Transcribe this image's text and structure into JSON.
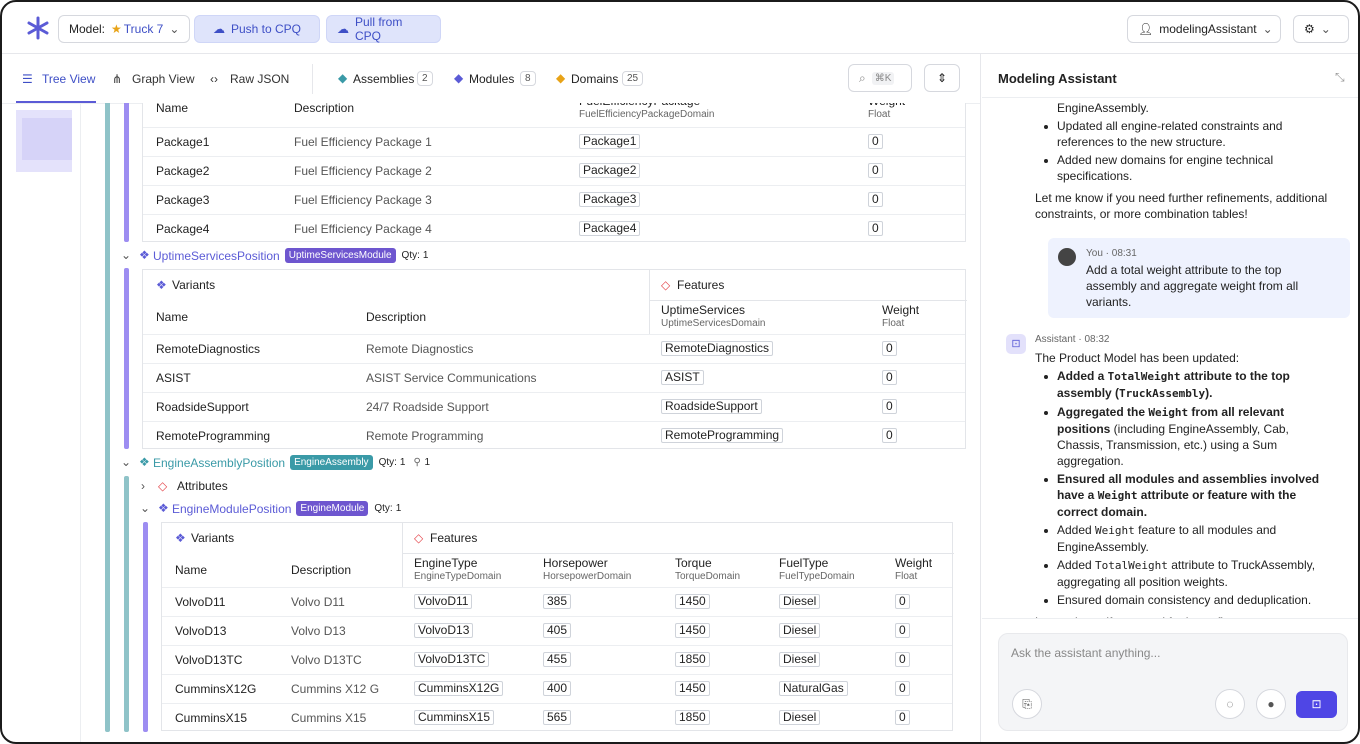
{
  "header": {
    "model_label": "Model:",
    "model_name": "Truck 7",
    "push": "Push to CPQ",
    "pull": "Pull from CPQ",
    "user": "modelingAssistant"
  },
  "view_tabs": [
    "Tree View",
    "Graph View",
    "Raw JSON"
  ],
  "entity_tabs": [
    {
      "label": "Assemblies",
      "count": 2
    },
    {
      "label": "Modules",
      "count": 8
    },
    {
      "label": "Domains",
      "count": 25
    }
  ],
  "search_shortcut": "⌘K",
  "tree": {
    "package_table": {
      "columns": [
        {
          "name": "Name"
        },
        {
          "name": "Description"
        },
        {
          "name": "FuelEfficiencyPackage",
          "domain": "FuelEfficiencyPackageDomain"
        },
        {
          "name": "Weight",
          "domain": "Float"
        }
      ],
      "rows": [
        [
          "Package1",
          "Fuel Efficiency Package 1",
          "Package1",
          0
        ],
        [
          "Package2",
          "Fuel Efficiency Package 2",
          "Package2",
          0
        ],
        [
          "Package3",
          "Fuel Efficiency Package 3",
          "Package3",
          0
        ],
        [
          "Package4",
          "Fuel Efficiency Package 4",
          "Package4",
          0
        ]
      ]
    },
    "uptime": {
      "name": "UptimeServicesPosition",
      "badge": "UptimeServicesModule",
      "qty_label": "Qty:",
      "qty": 1,
      "table": {
        "variants_label": "Variants",
        "features_label": "Features",
        "columns": [
          {
            "name": "Name"
          },
          {
            "name": "Description"
          },
          {
            "name": "UptimeServices",
            "domain": "UptimeServicesDomain"
          },
          {
            "name": "Weight",
            "domain": "Float"
          }
        ],
        "rows": [
          [
            "RemoteDiagnostics",
            "Remote Diagnostics",
            "RemoteDiagnostics",
            0
          ],
          [
            "ASIST",
            "ASIST Service Communications",
            "ASIST",
            0
          ],
          [
            "RoadsideSupport",
            "24/7 Roadside Support",
            "RoadsideSupport",
            0
          ],
          [
            "RemoteProgramming",
            "Remote Programming",
            "RemoteProgramming",
            0
          ]
        ]
      }
    },
    "engine_assembly": {
      "name": "EngineAssemblyPosition",
      "badge": "EngineAssembly",
      "qty_label": "Qty:",
      "qty": 1,
      "count": 1
    },
    "attributes": "Attributes",
    "engine_module": {
      "name": "EngineModulePosition",
      "badge": "EngineModule",
      "qty_label": "Qty:",
      "qty": 1,
      "table": {
        "variants_label": "Variants",
        "features_label": "Features",
        "columns": [
          {
            "name": "Name"
          },
          {
            "name": "Description"
          },
          {
            "name": "EngineType",
            "domain": "EngineTypeDomain"
          },
          {
            "name": "Horsepower",
            "domain": "HorsepowerDomain"
          },
          {
            "name": "Torque",
            "domain": "TorqueDomain"
          },
          {
            "name": "FuelType",
            "domain": "FuelTypeDomain"
          },
          {
            "name": "Weight",
            "domain": "Float"
          }
        ],
        "rows": [
          [
            "VolvoD11",
            "Volvo D11",
            "VolvoD11",
            385,
            1450,
            "Diesel",
            0
          ],
          [
            "VolvoD13",
            "Volvo D13",
            "VolvoD13",
            405,
            1450,
            "Diesel",
            0
          ],
          [
            "VolvoD13TC",
            "Volvo D13TC",
            "VolvoD13TC",
            455,
            1850,
            "Diesel",
            0
          ],
          [
            "CumminsX12G",
            "Cummins X12 G",
            "CumminsX12G",
            400,
            1450,
            "NaturalGas",
            0
          ],
          [
            "CumminsX15",
            "Cummins X15",
            "CumminsX15",
            565,
            1850,
            "Diesel",
            0
          ]
        ]
      }
    }
  },
  "assistant": {
    "title": "Modeling Assistant",
    "placeholder": "Ask the assistant anything...",
    "messages": [
      {
        "lead": "EngineAssembly.",
        "bullets": [
          [
            {
              "text": "Updated all engine-related constraints and references to the new structure."
            }
          ],
          [
            {
              "text": "Added new domains for engine technical specifications."
            }
          ]
        ],
        "closing": "Let me know if you need further refinements, additional constraints, or more combination tables!"
      },
      {
        "meta": "You · 08:31",
        "text": "Add a total weight attribute to the top assembly and aggregate weight from all variants."
      },
      {
        "meta": "Assistant · 08:32",
        "intro": "The Product Model has been updated:",
        "bullets": [
          [
            {
              "text": "Added a ",
              "style": "bold"
            },
            {
              "text": "TotalWeight",
              "style": "bold-code"
            },
            {
              "text": " attribute to the top assembly (",
              "style": "bold"
            },
            {
              "text": "TruckAssembly",
              "style": "bold-code"
            },
            {
              "text": ").",
              "style": "bold"
            }
          ],
          [
            {
              "text": "Aggregated the ",
              "style": "bold"
            },
            {
              "text": "Weight",
              "style": "bold-code"
            },
            {
              "text": " from all relevant positions",
              "style": "bold"
            },
            {
              "text": " (including EngineAssembly, Cab, Chassis, Transmission, etc.) using a Sum aggregation."
            }
          ],
          [
            {
              "text": "Ensured all modules and assemblies involved have a ",
              "style": "bold"
            },
            {
              "text": "Weight",
              "style": "bold-code"
            },
            {
              "text": " attribute or feature with the correct domain.",
              "style": "bold"
            }
          ],
          [
            {
              "text": "Added "
            },
            {
              "text": "Weight",
              "style": "code"
            },
            {
              "text": " feature to all modules and EngineAssembly."
            }
          ],
          [
            {
              "text": "Added "
            },
            {
              "text": "TotalWeight",
              "style": "code"
            },
            {
              "text": " attribute to TruckAssembly, aggregating all position weights."
            }
          ],
          [
            {
              "text": "Ensured domain consistency and deduplication."
            }
          ]
        ],
        "closing": "Let me know if you need further refinements or additional aggregations!"
      }
    ]
  }
}
